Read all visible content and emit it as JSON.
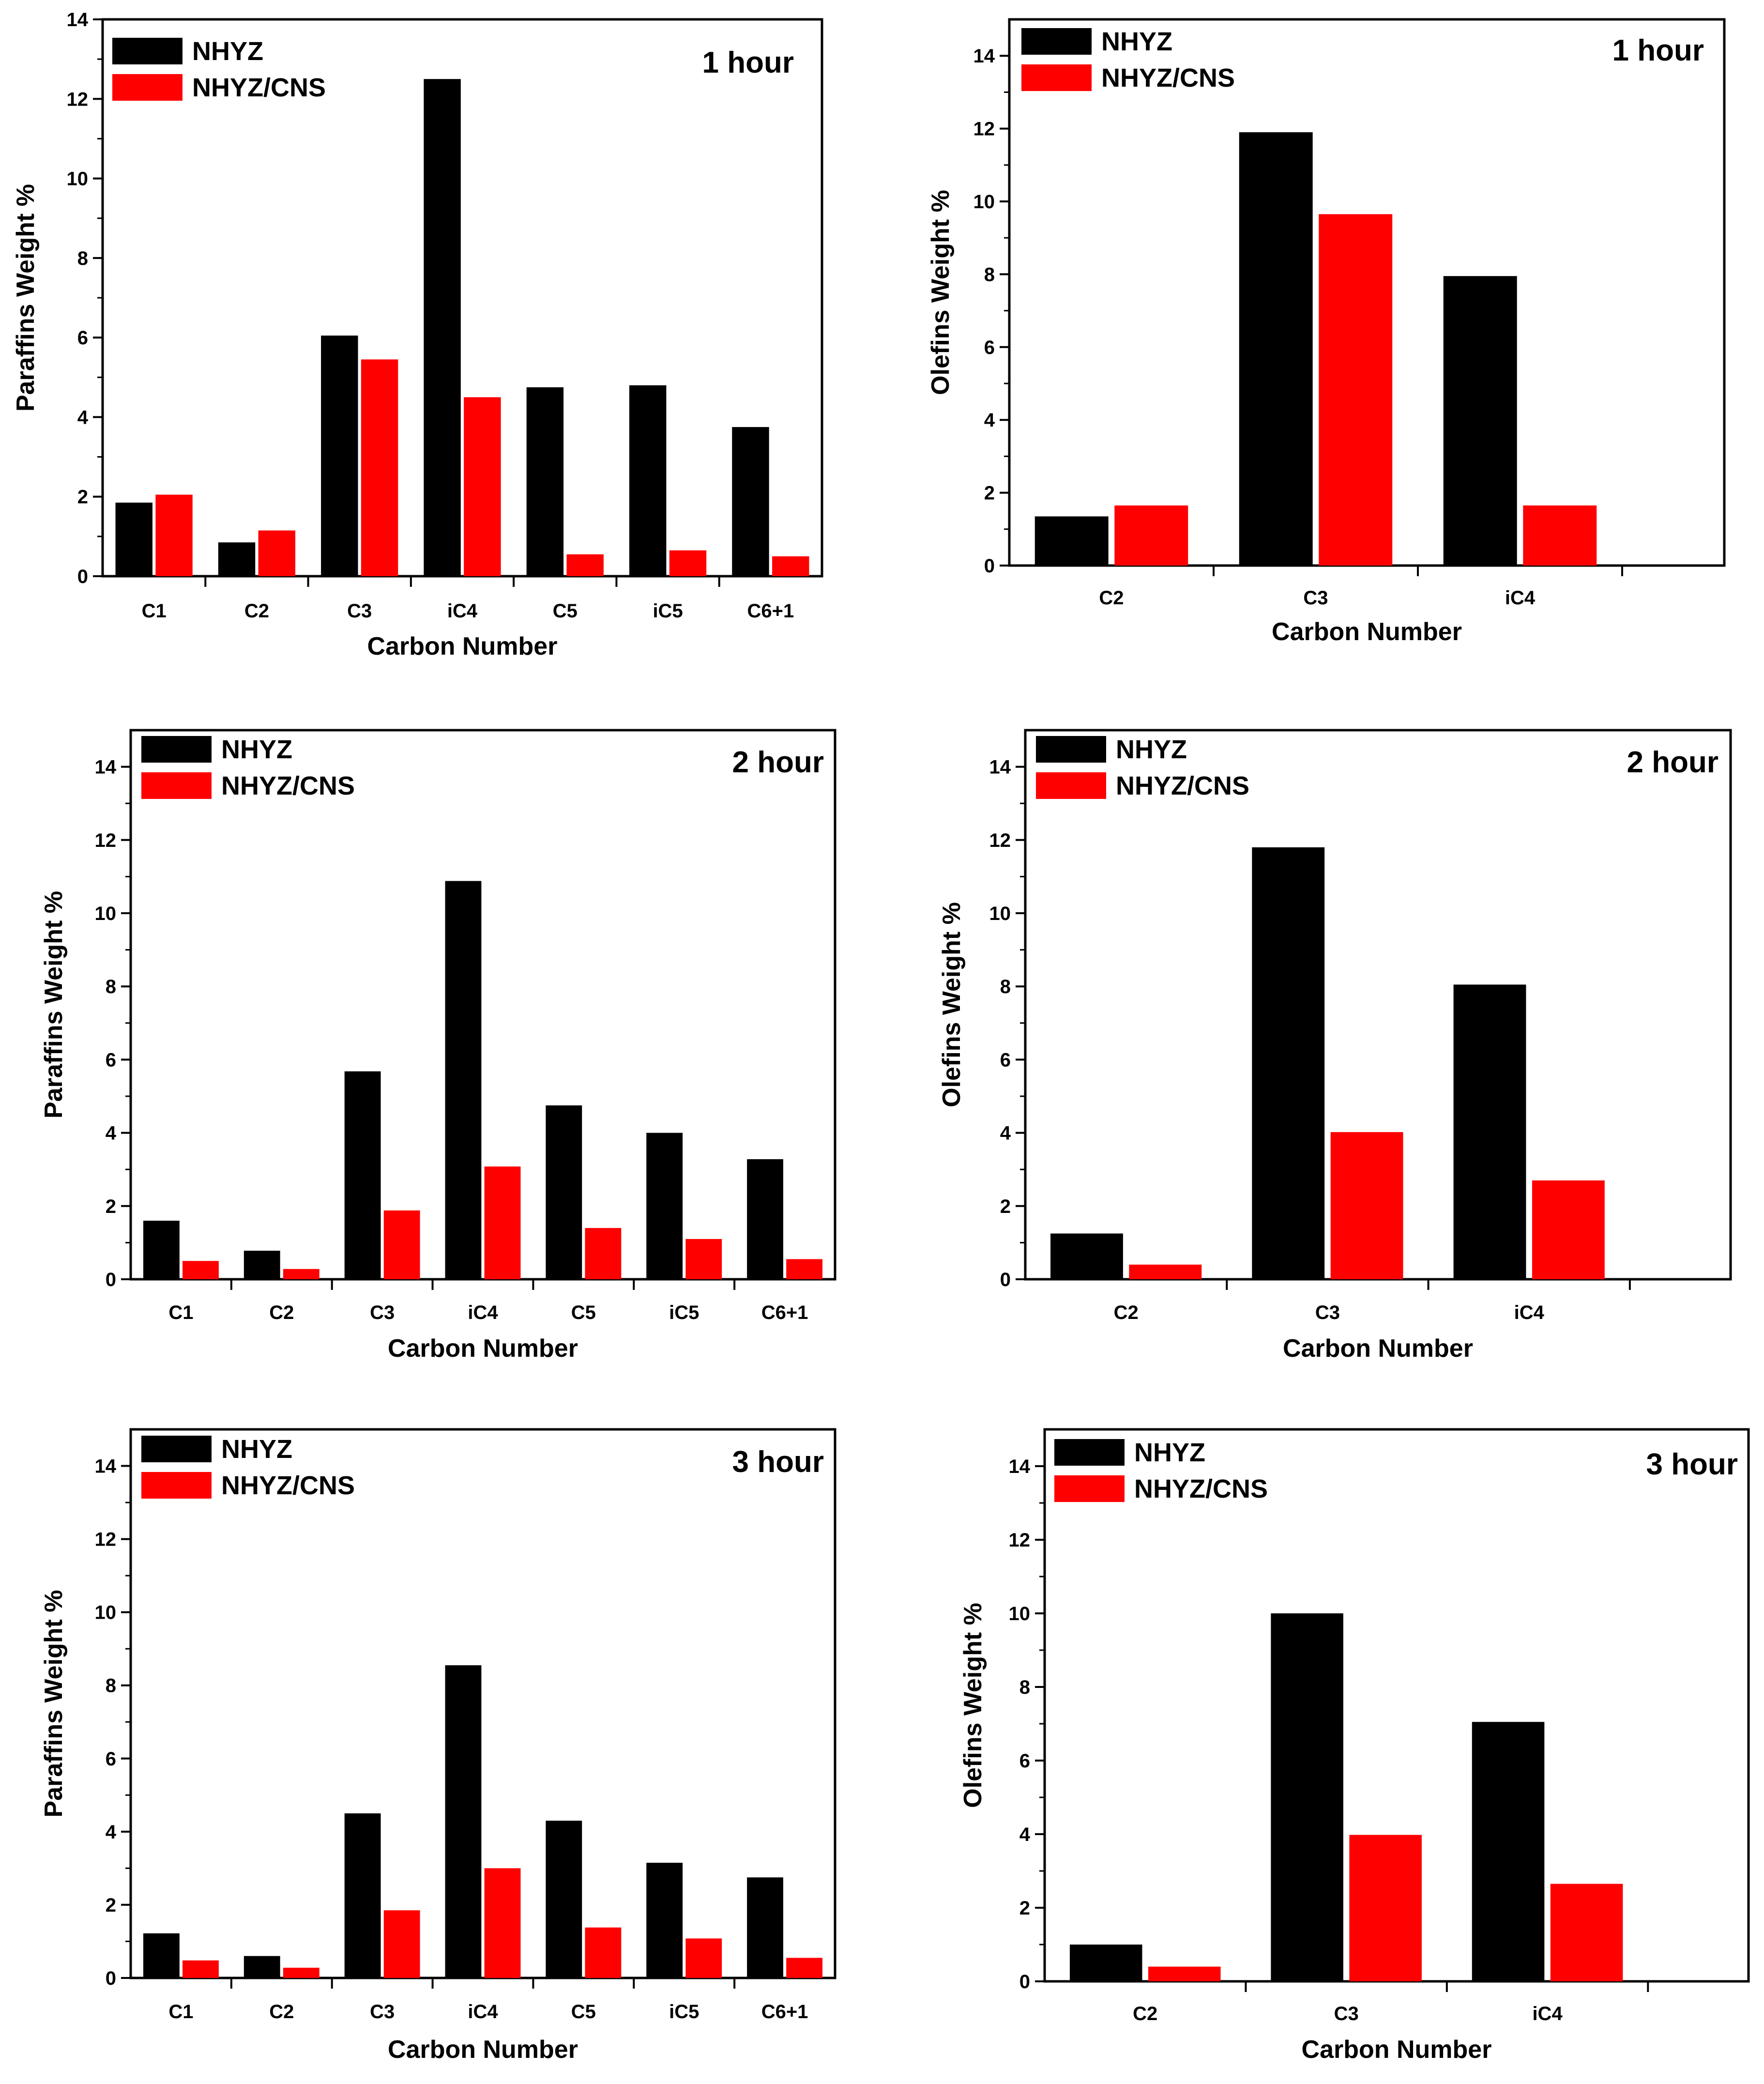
{
  "colors": {
    "NHYZ": "#000000",
    "NHYZ/CNS": "#ff0000"
  },
  "chart_data": [
    {
      "type": "bar",
      "title": "1 hour",
      "xlabel": "Carbon Number",
      "ylabel": "Paraffins Weight %",
      "ylim": [
        0,
        14
      ],
      "yticks": [
        "0",
        "2",
        "4",
        "6",
        "8",
        "10",
        "12",
        "14"
      ],
      "categories": [
        "C1",
        "C2",
        "C3",
        "iC4",
        "C5",
        "iC5",
        "C6+1"
      ],
      "legend": [
        "NHYZ",
        "NHYZ/CNS"
      ],
      "legend_position": "top-left",
      "series": [
        {
          "name": "NHYZ",
          "values": [
            1.85,
            0.85,
            6.05,
            12.5,
            4.75,
            4.8,
            3.75
          ]
        },
        {
          "name": "NHYZ/CNS",
          "values": [
            2.05,
            1.15,
            5.45,
            4.5,
            0.55,
            0.65,
            0.5
          ]
        }
      ]
    },
    {
      "type": "bar",
      "title": "1 hour",
      "xlabel": "Carbon Number",
      "ylabel": "Olefins Weight %",
      "ylim": [
        0,
        15
      ],
      "yticks": [
        "0",
        "2",
        "4",
        "6",
        "8",
        "10",
        "12",
        "14"
      ],
      "categories": [
        "C2",
        "C3",
        "iC4"
      ],
      "legend": [
        "NHYZ",
        "NHYZ/CNS"
      ],
      "legend_position": "top-left",
      "series": [
        {
          "name": "NHYZ",
          "values": [
            1.35,
            11.9,
            7.95
          ]
        },
        {
          "name": "NHYZ/CNS",
          "values": [
            1.65,
            9.65,
            1.65
          ]
        }
      ]
    },
    {
      "type": "bar",
      "title": "2 hour",
      "xlabel": "Carbon Number",
      "ylabel": "Paraffins Weight %",
      "ylim": [
        0,
        15
      ],
      "yticks": [
        "0",
        "2",
        "4",
        "6",
        "8",
        "10",
        "12",
        "14"
      ],
      "categories": [
        "C1",
        "C2",
        "C3",
        "iC4",
        "C5",
        "iC5",
        "C6+1"
      ],
      "legend": [
        "NHYZ",
        "NHYZ/CNS"
      ],
      "legend_position": "top-left",
      "series": [
        {
          "name": "NHYZ",
          "values": [
            1.6,
            0.78,
            5.68,
            10.88,
            4.75,
            4.0,
            3.28
          ]
        },
        {
          "name": "NHYZ/CNS",
          "values": [
            0.5,
            0.28,
            1.88,
            3.08,
            1.4,
            1.1,
            0.55
          ]
        }
      ]
    },
    {
      "type": "bar",
      "title": "2 hour",
      "xlabel": "Carbon Number",
      "ylabel": "Olefins Weight %",
      "ylim": [
        0,
        15
      ],
      "yticks": [
        "0",
        "2",
        "4",
        "6",
        "8",
        "10",
        "12",
        "14"
      ],
      "categories": [
        "C2",
        "C3",
        "iC4"
      ],
      "legend": [
        "NHYZ",
        "NHYZ/CNS"
      ],
      "legend_position": "top-left",
      "series": [
        {
          "name": "NHYZ",
          "values": [
            1.25,
            11.8,
            8.05
          ]
        },
        {
          "name": "NHYZ/CNS",
          "values": [
            0.4,
            4.02,
            2.7
          ]
        }
      ]
    },
    {
      "type": "bar",
      "title": "3 hour",
      "xlabel": "Carbon Number",
      "ylabel": "Paraffins Weight %",
      "ylim": [
        0,
        15
      ],
      "yticks": [
        "0",
        "2",
        "4",
        "6",
        "8",
        "10",
        "12",
        "14"
      ],
      "categories": [
        "C1",
        "C2",
        "C3",
        "iC4",
        "C5",
        "iC5",
        "C6+1"
      ],
      "legend": [
        "NHYZ",
        "NHYZ/CNS"
      ],
      "legend_position": "top-left",
      "series": [
        {
          "name": "NHYZ",
          "values": [
            1.22,
            0.6,
            4.5,
            8.55,
            4.3,
            3.15,
            2.75
          ]
        },
        {
          "name": "NHYZ/CNS",
          "values": [
            0.48,
            0.28,
            1.85,
            3.0,
            1.38,
            1.08,
            0.55
          ]
        }
      ]
    },
    {
      "type": "bar",
      "title": "3 hour",
      "xlabel": "Carbon Number",
      "ylabel": "Olefins Weight %",
      "ylim": [
        0,
        15
      ],
      "yticks": [
        "0",
        "2",
        "4",
        "6",
        "8",
        "10",
        "12",
        "14"
      ],
      "categories": [
        "C2",
        "C3",
        "iC4"
      ],
      "legend": [
        "NHYZ",
        "NHYZ/CNS"
      ],
      "legend_position": "top-left",
      "series": [
        {
          "name": "NHYZ",
          "values": [
            1.0,
            10.0,
            7.05
          ]
        },
        {
          "name": "NHYZ/CNS",
          "values": [
            0.4,
            3.98,
            2.65
          ]
        }
      ]
    }
  ]
}
